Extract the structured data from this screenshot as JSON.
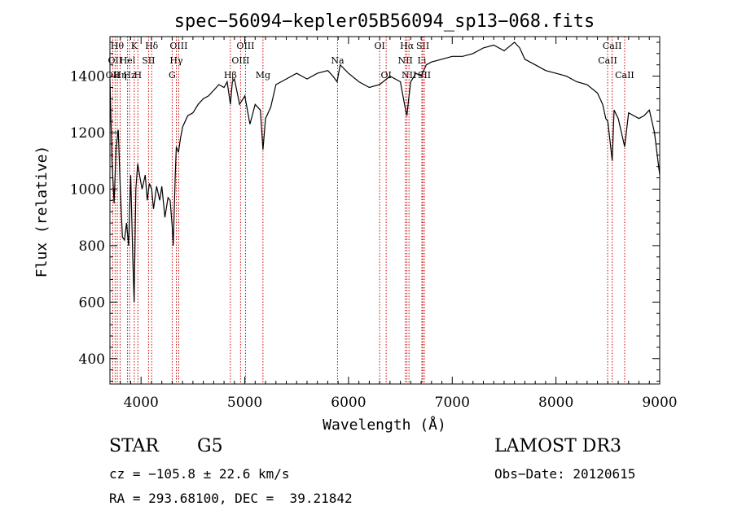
{
  "chart_data": {
    "type": "line",
    "title": "spec−56094−kepler05B56094_sp13−068.fits",
    "xlabel": "Wavelength (Å)",
    "ylabel": "Flux (relative)",
    "xlim": [
      3700,
      9000
    ],
    "ylim": [
      310,
      1540
    ],
    "x_ticks": [
      4000,
      5000,
      6000,
      7000,
      8000,
      9000
    ],
    "y_ticks": [
      400,
      600,
      800,
      1000,
      1200,
      1400
    ],
    "line_color": "#000000",
    "marker_color": "#cc0000",
    "series": [
      {
        "name": "flux",
        "x": [
          3700,
          3720,
          3740,
          3760,
          3780,
          3800,
          3820,
          3840,
          3860,
          3880,
          3900,
          3920,
          3933,
          3950,
          3968,
          3990,
          4010,
          4040,
          4060,
          4080,
          4102,
          4120,
          4150,
          4180,
          4200,
          4230,
          4260,
          4280,
          4300,
          4310,
          4330,
          4340,
          4360,
          4380,
          4400,
          4450,
          4500,
          4550,
          4600,
          4650,
          4700,
          4750,
          4800,
          4830,
          4861,
          4880,
          4900,
          4950,
          5000,
          5050,
          5100,
          5150,
          5175,
          5200,
          5250,
          5300,
          5400,
          5500,
          5600,
          5700,
          5800,
          5850,
          5890,
          5920,
          6000,
          6100,
          6200,
          6300,
          6400,
          6500,
          6540,
          6563,
          6580,
          6600,
          6650,
          6700,
          6750,
          6800,
          6900,
          7000,
          7100,
          7200,
          7300,
          7400,
          7500,
          7600,
          7650,
          7700,
          7800,
          7900,
          8000,
          8100,
          8200,
          8300,
          8400,
          8450,
          8480,
          8500,
          8542,
          8560,
          8600,
          8662,
          8700,
          8800,
          8850,
          8900,
          8950,
          9000
        ],
        "y": [
          1390,
          1100,
          950,
          1150,
          1210,
          1000,
          830,
          820,
          880,
          800,
          1050,
          760,
          600,
          1000,
          1090,
          1040,
          1000,
          1050,
          960,
          1020,
          1000,
          930,
          1010,
          960,
          1010,
          900,
          970,
          960,
          870,
          800,
          1050,
          1150,
          1130,
          1180,
          1220,
          1260,
          1270,
          1300,
          1320,
          1330,
          1350,
          1370,
          1360,
          1380,
          1300,
          1380,
          1390,
          1300,
          1330,
          1230,
          1300,
          1280,
          1140,
          1250,
          1290,
          1370,
          1390,
          1410,
          1390,
          1410,
          1420,
          1400,
          1380,
          1440,
          1410,
          1380,
          1360,
          1370,
          1400,
          1380,
          1300,
          1260,
          1320,
          1380,
          1410,
          1400,
          1440,
          1450,
          1460,
          1470,
          1470,
          1480,
          1500,
          1510,
          1490,
          1520,
          1500,
          1460,
          1440,
          1420,
          1410,
          1400,
          1380,
          1370,
          1340,
          1300,
          1250,
          1240,
          1100,
          1280,
          1250,
          1150,
          1270,
          1250,
          1260,
          1280,
          1200,
          1050
        ]
      }
    ],
    "line_markers": [
      {
        "wl": 3727,
        "labels": [
          "OII"
        ],
        "rows": [
          2
        ]
      },
      {
        "wl": 3750,
        "labels": [
          "OII"
        ],
        "rows": [
          1
        ]
      },
      {
        "wl": 3771,
        "labels": [
          "Hθ"
        ],
        "rows": [
          0
        ]
      },
      {
        "wl": 3798,
        "labels": [
          "Hη"
        ],
        "rows": [
          2
        ]
      },
      {
        "wl": 3869,
        "labels": [
          "Hel"
        ],
        "rows": [
          1
        ]
      },
      {
        "wl": 3889,
        "labels": [
          "Hz"
        ],
        "rows": [
          2
        ]
      },
      {
        "wl": 3934,
        "labels": [
          "K"
        ],
        "rows": [
          0
        ]
      },
      {
        "wl": 3969,
        "labels": [
          "H"
        ],
        "rows": [
          2
        ]
      },
      {
        "wl": 4072,
        "labels": [
          "SII"
        ],
        "rows": [
          1
        ]
      },
      {
        "wl": 4102,
        "labels": [
          "Hδ"
        ],
        "rows": [
          0
        ]
      },
      {
        "wl": 4300,
        "labels": [
          "G"
        ],
        "rows": [
          2
        ]
      },
      {
        "wl": 4340,
        "labels": [
          "Hγ"
        ],
        "rows": [
          1
        ]
      },
      {
        "wl": 4363,
        "labels": [
          "OIII"
        ],
        "rows": [
          0
        ]
      },
      {
        "wl": 4861,
        "labels": [
          "Hβ"
        ],
        "rows": [
          2
        ]
      },
      {
        "wl": 4959,
        "labels": [
          "OIII"
        ],
        "rows": [
          1
        ]
      },
      {
        "wl": 5007,
        "labels": [
          "OIII"
        ],
        "rows": [
          0
        ]
      },
      {
        "wl": 5175,
        "labels": [
          "Mg"
        ],
        "rows": [
          2
        ]
      },
      {
        "wl": 5894,
        "labels": [
          "Na"
        ],
        "rows": [
          1
        ]
      },
      {
        "wl": 6300,
        "labels": [
          "OI"
        ],
        "rows": [
          0
        ]
      },
      {
        "wl": 6363,
        "labels": [
          "OI"
        ],
        "rows": [
          2
        ]
      },
      {
        "wl": 6548,
        "labels": [
          "NII"
        ],
        "rows": [
          1
        ]
      },
      {
        "wl": 6563,
        "labels": [
          "Hα"
        ],
        "rows": [
          0
        ]
      },
      {
        "wl": 6583,
        "labels": [
          "NII"
        ],
        "rows": [
          2
        ]
      },
      {
        "wl": 6707,
        "labels": [
          "Li"
        ],
        "rows": [
          1
        ]
      },
      {
        "wl": 6716,
        "labels": [
          "SII"
        ],
        "rows": [
          0
        ]
      },
      {
        "wl": 6731,
        "labels": [
          "SII"
        ],
        "rows": [
          2
        ]
      },
      {
        "wl": 8498,
        "labels": [
          "CaII"
        ],
        "rows": [
          1
        ]
      },
      {
        "wl": 8542,
        "labels": [
          "CaII"
        ],
        "rows": [
          0
        ]
      },
      {
        "wl": 8662,
        "labels": [
          "CaII"
        ],
        "rows": [
          2
        ]
      }
    ]
  },
  "info": {
    "object_class": "STAR",
    "subclass": "G5",
    "survey": "LAMOST DR3",
    "redshift": "cz = −105.8 ± 22.6 km/s",
    "obs_date": "Obs−Date: 20120615",
    "coords": "RA = 293.68100, DEC =  39.21842"
  }
}
